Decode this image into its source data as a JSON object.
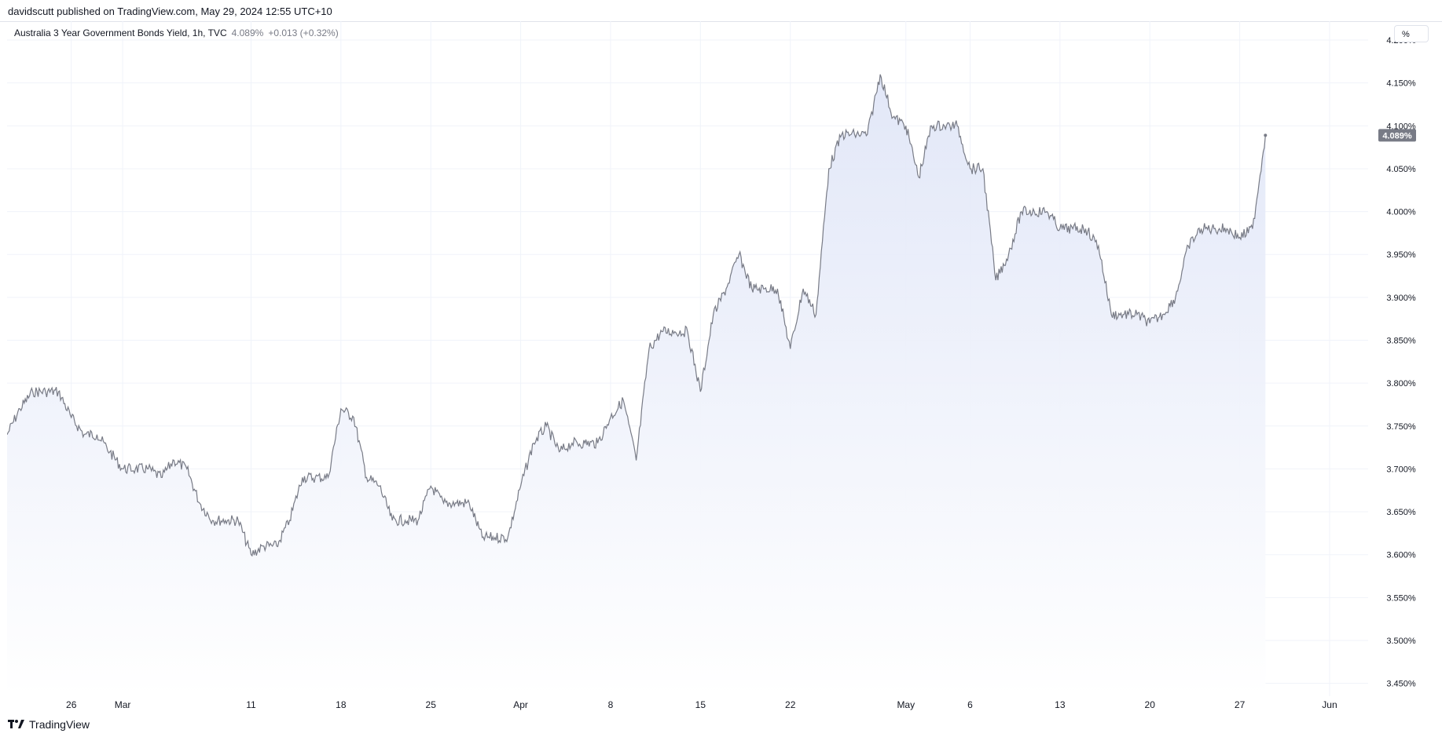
{
  "header": {
    "published_by": "davidscutt published on TradingView.com, May 29, 2024 12:55 UTC+10"
  },
  "legend": {
    "symbol": "Australia 3 Year Government Bonds Yield, 1h, TVC",
    "last": "4.089%",
    "change": "+0.013 (+0.32%)"
  },
  "controls": {
    "percent_label": "%"
  },
  "footer": {
    "brand": "TradingView"
  },
  "colors": {
    "line": "#787b86",
    "fill_top": "#dfe5f7",
    "fill_bottom": "#ffffff",
    "grid": "#f0f3fa",
    "text": "#131722",
    "price_tag": "#787b86"
  },
  "chart_data": {
    "type": "area",
    "title": "Australia 3 Year Government Bonds Yield, 1h, TVC",
    "ylabel": "%",
    "ylim": [
      3.435,
      4.222
    ],
    "grid": true,
    "y_ticks": [
      "3.450%",
      "3.500%",
      "3.550%",
      "3.600%",
      "3.650%",
      "3.700%",
      "3.750%",
      "3.800%",
      "3.850%",
      "3.900%",
      "3.950%",
      "4.000%",
      "4.050%",
      "4.100%",
      "4.150%",
      "4.200%"
    ],
    "x_labels": [
      "26",
      "Mar",
      "11",
      "18",
      "25",
      "Apr",
      "8",
      "15",
      "22",
      "May",
      "6",
      "13",
      "20",
      "27",
      "Jun"
    ],
    "x_label_dates": [
      "2024-02-26",
      "2024-03-01",
      "2024-03-11",
      "2024-03-18",
      "2024-03-25",
      "2024-04-01",
      "2024-04-08",
      "2024-04-15",
      "2024-04-22",
      "2024-05-01",
      "2024-05-06",
      "2024-05-13",
      "2024-05-20",
      "2024-05-27",
      "2024-06-03"
    ],
    "x_range": [
      "2024-02-21",
      "2024-06-06"
    ],
    "last_value": "4.089%",
    "series": [
      {
        "x": [
          "2024-02-21",
          "2024-02-22",
          "2024-02-23",
          "2024-02-24",
          "2024-02-25",
          "2024-02-26",
          "2024-02-27",
          "2024-02-28",
          "2024-02-29",
          "2024-03-01",
          "2024-03-02",
          "2024-03-03",
          "2024-03-04",
          "2024-03-05",
          "2024-03-06",
          "2024-03-07",
          "2024-03-08",
          "2024-03-09",
          "2024-03-10",
          "2024-03-11",
          "2024-03-12",
          "2024-03-13",
          "2024-03-14",
          "2024-03-15",
          "2024-03-16",
          "2024-03-17",
          "2024-03-18",
          "2024-03-19",
          "2024-03-20",
          "2024-03-21",
          "2024-03-22",
          "2024-03-23",
          "2024-03-24",
          "2024-03-25",
          "2024-03-26",
          "2024-03-27",
          "2024-03-28",
          "2024-03-29",
          "2024-03-30",
          "2024-03-31",
          "2024-04-01",
          "2024-04-02",
          "2024-04-03",
          "2024-04-04",
          "2024-04-05",
          "2024-04-06",
          "2024-04-07",
          "2024-04-08",
          "2024-04-09",
          "2024-04-10",
          "2024-04-11",
          "2024-04-12",
          "2024-04-13",
          "2024-04-14",
          "2024-04-15",
          "2024-04-16",
          "2024-04-17",
          "2024-04-18",
          "2024-04-19",
          "2024-04-20",
          "2024-04-21",
          "2024-04-22",
          "2024-04-23",
          "2024-04-24",
          "2024-04-25",
          "2024-04-26",
          "2024-04-27",
          "2024-04-28",
          "2024-04-29",
          "2024-04-30",
          "2024-05-01",
          "2024-05-02",
          "2024-05-03",
          "2024-05-04",
          "2024-05-05",
          "2024-05-06",
          "2024-05-07",
          "2024-05-08",
          "2024-05-09",
          "2024-05-10",
          "2024-05-11",
          "2024-05-12",
          "2024-05-13",
          "2024-05-14",
          "2024-05-15",
          "2024-05-16",
          "2024-05-17",
          "2024-05-18",
          "2024-05-19",
          "2024-05-20",
          "2024-05-21",
          "2024-05-22",
          "2024-05-23",
          "2024-05-24",
          "2024-05-25",
          "2024-05-26",
          "2024-05-27",
          "2024-05-28",
          "2024-05-29"
        ],
        "values": [
          3.74,
          3.77,
          3.79,
          3.79,
          3.79,
          3.76,
          3.74,
          3.74,
          3.72,
          3.7,
          3.7,
          3.7,
          3.69,
          3.71,
          3.7,
          3.66,
          3.64,
          3.64,
          3.64,
          3.6,
          3.61,
          3.61,
          3.64,
          3.69,
          3.69,
          3.69,
          3.77,
          3.76,
          3.69,
          3.68,
          3.64,
          3.64,
          3.64,
          3.68,
          3.66,
          3.66,
          3.66,
          3.62,
          3.62,
          3.62,
          3.68,
          3.73,
          3.75,
          3.72,
          3.73,
          3.73,
          3.73,
          3.76,
          3.78,
          3.71,
          3.84,
          3.86,
          3.86,
          3.86,
          3.79,
          3.88,
          3.91,
          3.95,
          3.91,
          3.91,
          3.91,
          3.84,
          3.91,
          3.88,
          4.05,
          4.09,
          4.09,
          4.09,
          4.16,
          4.11,
          4.1,
          4.04,
          4.1,
          4.1,
          4.1,
          4.05,
          4.05,
          3.92,
          3.95,
          4.0,
          4.0,
          4.0,
          3.98,
          3.98,
          3.98,
          3.96,
          3.88,
          3.88,
          3.88,
          3.87,
          3.88,
          3.9,
          3.96,
          3.98,
          3.98,
          3.98,
          3.97,
          3.98,
          4.089
        ]
      }
    ]
  }
}
